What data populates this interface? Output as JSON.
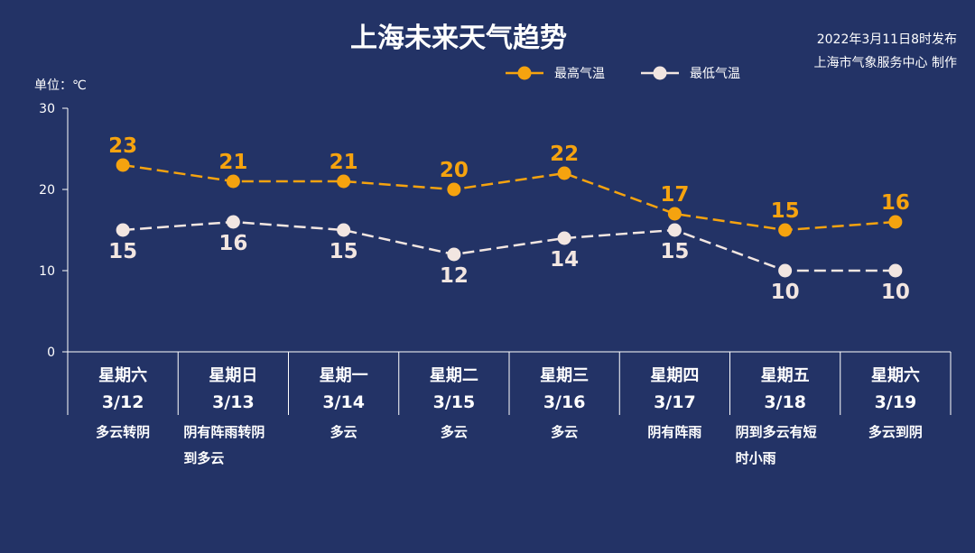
{
  "header": {
    "title": "上海未来天气趋势",
    "publish_time": "2022年3月11日8时发布",
    "producer": "上海市气象服务中心 制作"
  },
  "chart_data": {
    "type": "line",
    "title": "上海未来天气趋势",
    "unit_label": "单位：℃",
    "ylim": [
      0,
      30
    ],
    "yticks": [
      "0",
      "10",
      "20",
      "30"
    ],
    "grid": false,
    "legend_position": "top-right",
    "categories": [
      {
        "day": "星期六",
        "date": "3/12",
        "weather": [
          "多云转阴"
        ]
      },
      {
        "day": "星期日",
        "date": "3/13",
        "weather": [
          "阴有阵雨转阴",
          "到多云"
        ]
      },
      {
        "day": "星期一",
        "date": "3/14",
        "weather": [
          "多云"
        ]
      },
      {
        "day": "星期二",
        "date": "3/15",
        "weather": [
          "多云"
        ]
      },
      {
        "day": "星期三",
        "date": "3/16",
        "weather": [
          "多云"
        ]
      },
      {
        "day": "星期四",
        "date": "3/17",
        "weather": [
          "阴有阵雨"
        ]
      },
      {
        "day": "星期五",
        "date": "3/18",
        "weather": [
          "阴到多云有短",
          "时小雨"
        ]
      },
      {
        "day": "星期六",
        "date": "3/19",
        "weather": [
          "多云到阴"
        ]
      }
    ],
    "series": [
      {
        "name": "最高气温",
        "color": "#f5a30f",
        "values": [
          23,
          21,
          21,
          20,
          22,
          17,
          15,
          16
        ]
      },
      {
        "name": "最低气温",
        "color": "#f2e6e1",
        "values": [
          15,
          16,
          15,
          12,
          14,
          15,
          10,
          10
        ]
      }
    ]
  }
}
